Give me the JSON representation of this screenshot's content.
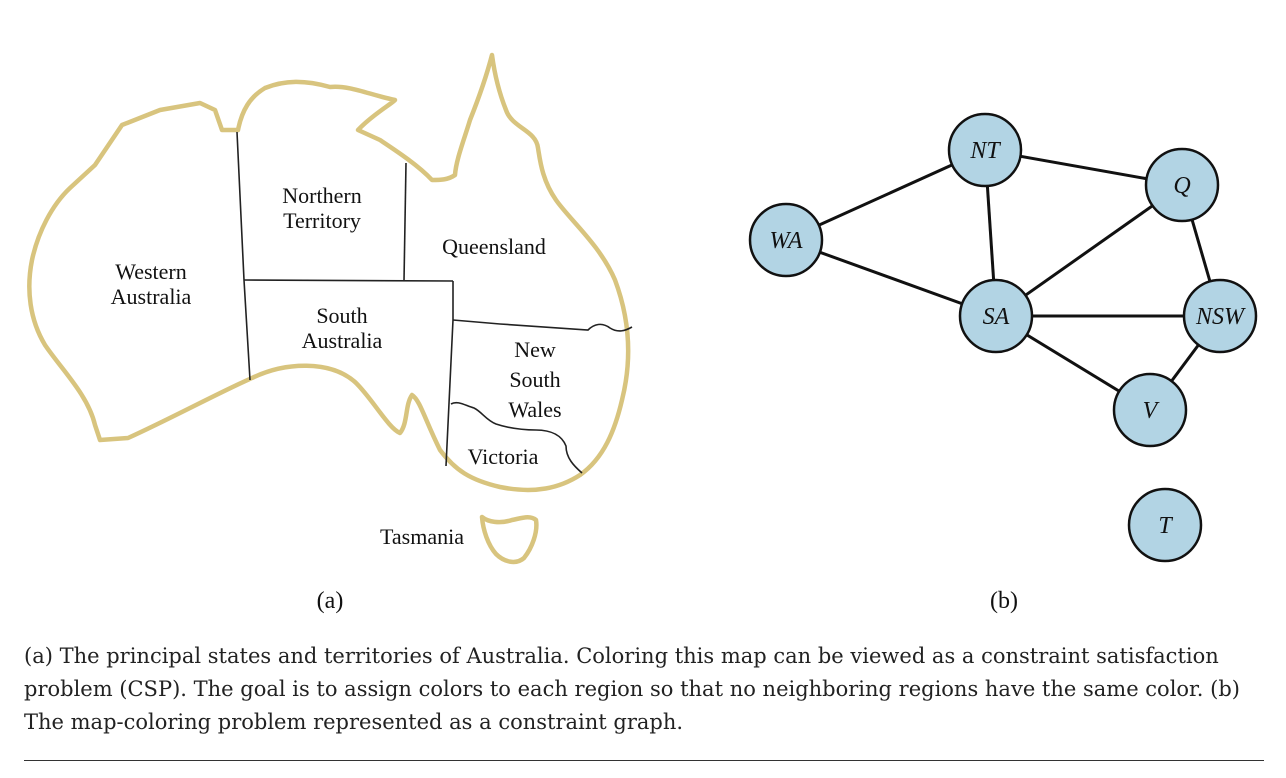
{
  "map": {
    "sublabel": "(a)",
    "colors": {
      "outline": "#d8c47e",
      "borders": "#222222"
    },
    "regions": [
      {
        "id": "wa",
        "lines": [
          "Western",
          "Australia"
        ]
      },
      {
        "id": "nt",
        "lines": [
          "Northern",
          "Territory"
        ]
      },
      {
        "id": "q",
        "lines": [
          "Queensland"
        ]
      },
      {
        "id": "sa",
        "lines": [
          "South",
          "Australia"
        ]
      },
      {
        "id": "nsw",
        "lines": [
          "New",
          "South",
          "Wales"
        ]
      },
      {
        "id": "v",
        "lines": [
          "Victoria"
        ]
      },
      {
        "id": "t",
        "lines": [
          "Tasmania"
        ]
      }
    ]
  },
  "graph": {
    "sublabel": "(b)",
    "colors": {
      "node_fill": "#b2d4e4",
      "node_stroke": "#111111",
      "edge": "#111111"
    },
    "nodes": [
      {
        "id": "NT",
        "label": "NT"
      },
      {
        "id": "Q",
        "label": "Q"
      },
      {
        "id": "WA",
        "label": "WA"
      },
      {
        "id": "SA",
        "label": "SA"
      },
      {
        "id": "NSW",
        "label": "NSW"
      },
      {
        "id": "V",
        "label": "V"
      },
      {
        "id": "T",
        "label": "T"
      }
    ],
    "edges": [
      [
        "WA",
        "NT"
      ],
      [
        "WA",
        "SA"
      ],
      [
        "NT",
        "SA"
      ],
      [
        "NT",
        "Q"
      ],
      [
        "SA",
        "Q"
      ],
      [
        "SA",
        "NSW"
      ],
      [
        "SA",
        "V"
      ],
      [
        "Q",
        "NSW"
      ],
      [
        "NSW",
        "V"
      ]
    ]
  },
  "caption": "(a) The principal states and territories of Australia. Coloring this map can be viewed as a constraint satisfaction problem (CSP). The goal is to assign colors to each region so that no neighboring regions have the same color. (b) The map-coloring problem represented as a constraint graph."
}
